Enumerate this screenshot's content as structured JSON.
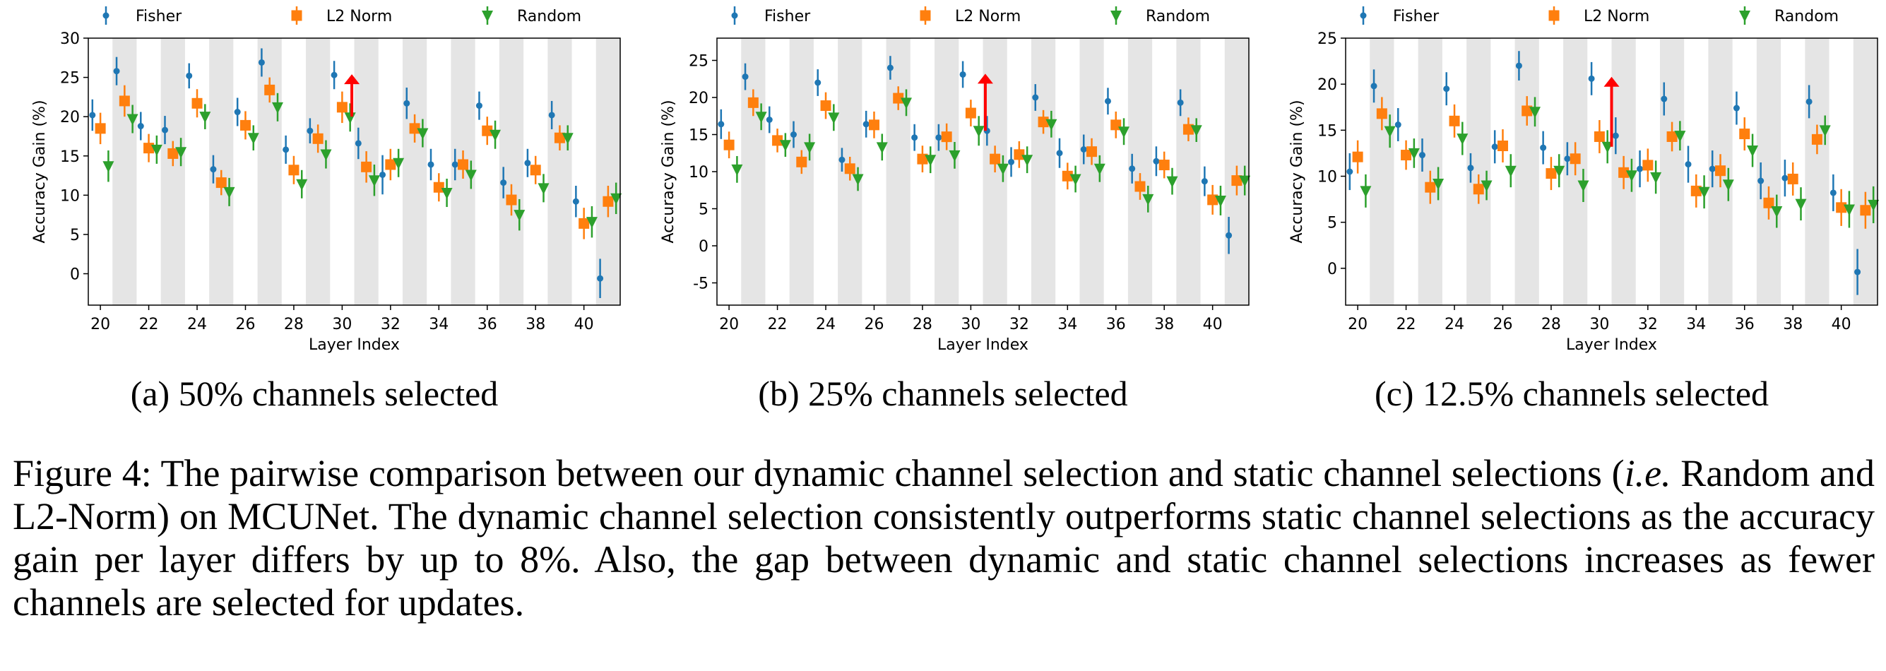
{
  "chart_data": [
    {
      "type": "errorbar-scatter",
      "caption": "(a) 50% channels selected",
      "xlabel": "Layer Index",
      "ylabel": "Accuracy Gain (%)",
      "xlim": [
        19.5,
        41.5
      ],
      "ylim": [
        -4,
        30
      ],
      "yticks": [
        0,
        5,
        10,
        15,
        20,
        25,
        30
      ],
      "xticks": [
        20,
        22,
        24,
        26,
        28,
        30,
        32,
        34,
        36,
        38,
        40
      ],
      "legend_position": "top",
      "layers": [
        20,
        21,
        22,
        23,
        24,
        25,
        26,
        27,
        28,
        29,
        30,
        31,
        32,
        33,
        34,
        35,
        36,
        37,
        38,
        39,
        40,
        41
      ],
      "series": [
        {
          "name": "Fisher",
          "marker": "dot",
          "color": "#1f77b4",
          "values": [
            20.2,
            25.8,
            18.8,
            18.3,
            25.2,
            13.3,
            20.6,
            26.9,
            15.8,
            18.2,
            25.3,
            16.6,
            12.6,
            21.7,
            13.9,
            13.9,
            21.4,
            11.6,
            14.1,
            20.2,
            9.2,
            -0.6
          ],
          "errors": [
            2.0,
            1.8,
            1.8,
            1.8,
            1.6,
            1.8,
            1.8,
            1.8,
            1.8,
            1.6,
            1.8,
            2.0,
            2.5,
            2.0,
            2.0,
            2.0,
            1.8,
            2.0,
            1.8,
            1.8,
            2.0,
            2.5
          ]
        },
        {
          "name": "L2 Norm",
          "marker": "square",
          "color": "#ff7f0e",
          "values": [
            18.5,
            22.0,
            16.0,
            15.3,
            21.7,
            11.6,
            18.9,
            23.4,
            13.2,
            17.2,
            21.2,
            13.6,
            13.9,
            18.5,
            11.0,
            13.9,
            18.2,
            9.4,
            13.2,
            17.3,
            6.4,
            9.2
          ],
          "errors": [
            2.0,
            2.0,
            1.8,
            1.6,
            1.8,
            1.6,
            1.8,
            1.6,
            1.8,
            1.8,
            2.0,
            2.0,
            2.0,
            1.8,
            1.8,
            1.8,
            1.8,
            2.0,
            1.8,
            1.6,
            2.0,
            2.0
          ]
        },
        {
          "name": "Random",
          "marker": "triangle-down",
          "color": "#2ca02c",
          "values": [
            13.7,
            19.7,
            15.8,
            15.5,
            20.0,
            10.4,
            17.3,
            21.2,
            11.4,
            15.2,
            19.9,
            11.9,
            14.1,
            17.9,
            10.3,
            12.6,
            17.7,
            7.5,
            10.9,
            17.3,
            6.6,
            9.6
          ],
          "errors": [
            2.0,
            1.8,
            1.8,
            1.8,
            1.6,
            1.8,
            1.6,
            1.8,
            1.8,
            1.8,
            1.8,
            2.0,
            1.8,
            1.8,
            1.8,
            1.8,
            1.8,
            2.0,
            1.8,
            1.6,
            2.0,
            2.0
          ]
        }
      ],
      "arrow": {
        "layer": 30.4,
        "from": 20.0,
        "to": 25.4,
        "color": "#ff0000"
      }
    },
    {
      "type": "errorbar-scatter",
      "caption": "(b) 25% channels selected",
      "xlabel": "Layer Index",
      "ylabel": "Accuracy Gain (%)",
      "xlim": [
        19.5,
        41.5
      ],
      "ylim": [
        -8,
        28
      ],
      "yticks": [
        -5,
        0,
        5,
        10,
        15,
        20,
        25
      ],
      "xticks": [
        20,
        22,
        24,
        26,
        28,
        30,
        32,
        34,
        36,
        38,
        40
      ],
      "legend_position": "top",
      "layers": [
        20,
        21,
        22,
        23,
        24,
        25,
        26,
        27,
        28,
        29,
        30,
        31,
        32,
        33,
        34,
        35,
        36,
        37,
        38,
        39,
        40,
        41
      ],
      "series": [
        {
          "name": "Fisher",
          "marker": "dot",
          "color": "#1f77b4",
          "values": [
            16.4,
            22.8,
            17.0,
            15.0,
            22.0,
            11.6,
            16.4,
            24.0,
            14.6,
            14.6,
            23.1,
            15.5,
            11.3,
            20.0,
            12.5,
            13.0,
            19.5,
            10.4,
            11.4,
            19.3,
            8.7,
            1.4
          ],
          "errors": [
            2.0,
            1.8,
            1.8,
            1.8,
            1.8,
            1.6,
            1.8,
            1.6,
            1.8,
            1.8,
            1.8,
            2.0,
            2.0,
            1.8,
            2.0,
            2.0,
            1.8,
            2.0,
            2.0,
            1.8,
            2.0,
            2.5
          ]
        },
        {
          "name": "L2 Norm",
          "marker": "square",
          "color": "#ff7f0e",
          "values": [
            13.6,
            19.3,
            14.2,
            11.3,
            18.9,
            10.4,
            16.3,
            19.9,
            11.7,
            14.7,
            17.9,
            11.7,
            12.3,
            16.7,
            9.4,
            12.7,
            16.3,
            8.0,
            10.9,
            15.7,
            6.2,
            8.8
          ],
          "errors": [
            1.8,
            1.8,
            1.6,
            1.6,
            1.8,
            1.6,
            1.8,
            1.6,
            1.8,
            1.8,
            1.8,
            1.8,
            1.8,
            1.6,
            1.8,
            1.8,
            1.8,
            1.8,
            1.8,
            1.6,
            2.0,
            2.0
          ]
        },
        {
          "name": "Random",
          "marker": "triangle-down",
          "color": "#2ca02c",
          "values": [
            10.3,
            17.4,
            13.6,
            13.3,
            17.3,
            9.0,
            13.3,
            19.3,
            11.6,
            12.2,
            15.5,
            10.4,
            11.6,
            16.4,
            9.0,
            10.4,
            15.4,
            6.3,
            8.7,
            15.6,
            6.1,
            8.8
          ],
          "errors": [
            1.8,
            1.8,
            1.6,
            1.8,
            1.8,
            1.6,
            1.8,
            1.8,
            1.8,
            1.8,
            2.0,
            1.8,
            1.8,
            1.8,
            1.8,
            1.8,
            1.8,
            1.8,
            1.8,
            1.6,
            2.0,
            2.0
          ]
        }
      ],
      "arrow": {
        "layer": 30.6,
        "from": 15.5,
        "to": 23.2,
        "color": "#ff0000"
      }
    },
    {
      "type": "errorbar-scatter",
      "caption": "(c) 12.5% channels selected",
      "xlabel": "Layer Index",
      "ylabel": "Accuracy Gain (%)",
      "xlim": [
        19.5,
        41.5
      ],
      "ylim": [
        -4,
        25
      ],
      "yticks": [
        0,
        5,
        10,
        15,
        20,
        25
      ],
      "xticks": [
        20,
        22,
        24,
        26,
        28,
        30,
        32,
        34,
        36,
        38,
        40
      ],
      "legend_position": "top",
      "layers": [
        20,
        21,
        22,
        23,
        24,
        25,
        26,
        27,
        28,
        29,
        30,
        31,
        32,
        33,
        34,
        35,
        36,
        37,
        38,
        39,
        40,
        41
      ],
      "series": [
        {
          "name": "Fisher",
          "marker": "dot",
          "color": "#1f77b4",
          "values": [
            10.5,
            19.8,
            15.6,
            12.3,
            19.5,
            10.9,
            13.2,
            22.0,
            13.1,
            11.9,
            20.6,
            14.4,
            10.8,
            18.4,
            11.3,
            10.8,
            17.4,
            9.5,
            9.8,
            18.1,
            8.2,
            -0.4
          ],
          "errors": [
            2.0,
            1.8,
            1.8,
            1.8,
            1.8,
            1.6,
            1.8,
            1.6,
            1.8,
            1.8,
            1.8,
            2.0,
            2.0,
            1.8,
            2.0,
            2.0,
            1.8,
            2.0,
            2.0,
            1.8,
            2.0,
            2.5
          ]
        },
        {
          "name": "L2 Norm",
          "marker": "square",
          "color": "#ff7f0e",
          "values": [
            12.1,
            16.8,
            12.3,
            8.8,
            16.0,
            8.6,
            13.3,
            17.1,
            10.3,
            11.9,
            14.3,
            10.4,
            11.2,
            14.3,
            8.4,
            10.6,
            14.6,
            7.1,
            9.7,
            14.0,
            6.6,
            6.3
          ],
          "errors": [
            1.8,
            1.8,
            1.6,
            1.8,
            1.8,
            1.6,
            1.8,
            1.6,
            1.8,
            1.8,
            1.8,
            1.8,
            1.8,
            1.6,
            1.8,
            1.8,
            1.8,
            1.8,
            1.8,
            1.6,
            2.0,
            2.0
          ]
        },
        {
          "name": "Random",
          "marker": "triangle-down",
          "color": "#2ca02c",
          "values": [
            8.4,
            14.9,
            12.5,
            9.2,
            14.1,
            9.0,
            10.6,
            17.0,
            10.6,
            9.0,
            13.2,
            10.1,
            9.9,
            14.4,
            8.3,
            9.1,
            12.8,
            6.2,
            7.0,
            15.0,
            6.4,
            6.9
          ],
          "errors": [
            1.8,
            1.8,
            1.6,
            1.8,
            1.8,
            1.6,
            1.8,
            1.6,
            1.8,
            1.8,
            1.8,
            1.8,
            1.8,
            1.6,
            1.8,
            1.8,
            1.8,
            1.8,
            1.8,
            1.6,
            2.0,
            2.0
          ]
        }
      ],
      "arrow": {
        "layer": 30.5,
        "from": 13.2,
        "to": 20.8,
        "color": "#ff0000"
      }
    }
  ],
  "figure_caption": {
    "prefix": "Figure 4:  The pairwise comparison between our dynamic channel selection and static channel selections (",
    "italic": "i.e.",
    "suffix": " Random and L2-Norm) on MCUNet. The dynamic channel selection consistently outperforms static channel selections as the accuracy gain per layer differs by up to 8%. Also, the gap between dynamic and static channel selections increases as fewer channels are selected for updates."
  }
}
